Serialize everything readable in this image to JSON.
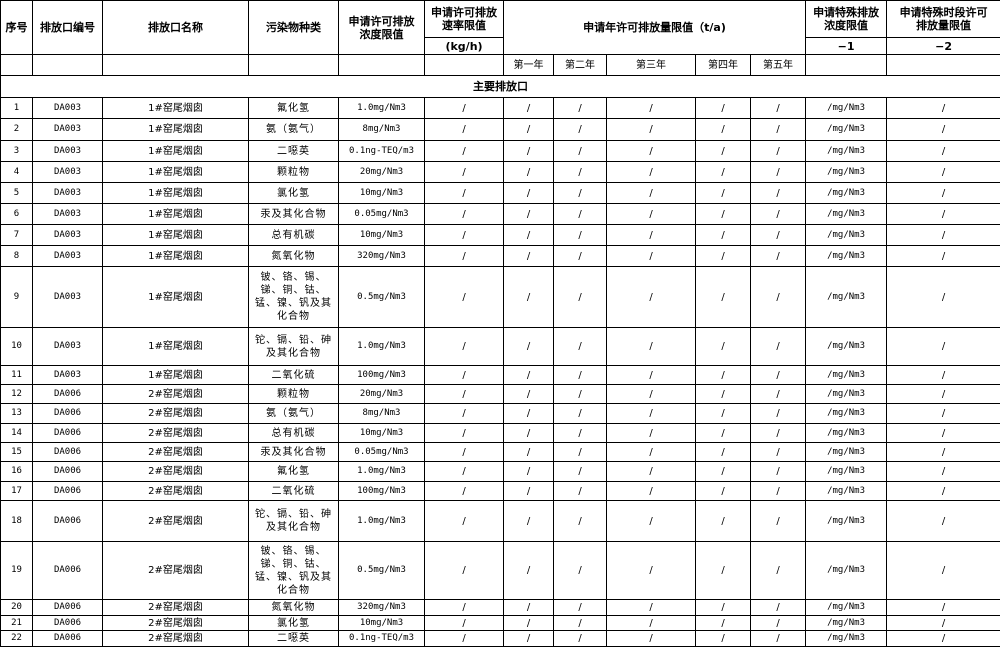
{
  "header": {
    "seq": "序号",
    "outlet_code": "排放口编号",
    "outlet_name": "排放口名称",
    "pollutant": "污染物种类",
    "conc_limit": "申请许可排放浓度限值",
    "rate_limit": "申请许可排放速率限值",
    "rate_unit": "(kg/h)",
    "annual_limit": "申请年许可排放量限值（t/a)",
    "years": [
      "第一年",
      "第二年",
      "第三年",
      "第四年",
      "第五年"
    ],
    "special_conc": "申请特殊排放浓度限值",
    "special_conc_note": "−1",
    "special_period": "申请特殊时段许可排放量限值",
    "special_period_note": "−2"
  },
  "section_title": "主要排放口",
  "rows": [
    [
      "1",
      "DA003",
      "1#窑尾烟囱",
      "氟化氢",
      "1.0mg/Nm3",
      "/",
      "/",
      "/",
      "/",
      "/",
      "/",
      "/mg/Nm3",
      "/"
    ],
    [
      "2",
      "DA003",
      "1#窑尾烟囱",
      "氨（氨气）",
      "8mg/Nm3",
      "/",
      "/",
      "/",
      "/",
      "/",
      "/",
      "/mg/Nm3",
      "/"
    ],
    [
      "3",
      "DA003",
      "1#窑尾烟囱",
      "二噁英",
      "0.1ng-TEQ/m3",
      "/",
      "/",
      "/",
      "/",
      "/",
      "/",
      "/mg/Nm3",
      "/"
    ],
    [
      "4",
      "DA003",
      "1#窑尾烟囱",
      "颗粒物",
      "20mg/Nm3",
      "/",
      "/",
      "/",
      "/",
      "/",
      "/",
      "/mg/Nm3",
      "/"
    ],
    [
      "5",
      "DA003",
      "1#窑尾烟囱",
      "氯化氢",
      "10mg/Nm3",
      "/",
      "/",
      "/",
      "/",
      "/",
      "/",
      "/mg/Nm3",
      "/"
    ],
    [
      "6",
      "DA003",
      "1#窑尾烟囱",
      "汞及其化合物",
      "0.05mg/Nm3",
      "/",
      "/",
      "/",
      "/",
      "/",
      "/",
      "/mg/Nm3",
      "/"
    ],
    [
      "7",
      "DA003",
      "1#窑尾烟囱",
      "总有机碳",
      "10mg/Nm3",
      "/",
      "/",
      "/",
      "/",
      "/",
      "/",
      "/mg/Nm3",
      "/"
    ],
    [
      "8",
      "DA003",
      "1#窑尾烟囱",
      "氮氧化物",
      "320mg/Nm3",
      "/",
      "/",
      "/",
      "/",
      "/",
      "/",
      "/mg/Nm3",
      "/"
    ],
    [
      "9",
      "DA003",
      "1#窑尾烟囱",
      "铍、铬、锡、锑、铜、钴、锰、镍、钒及其化合物",
      "0.5mg/Nm3",
      "/",
      "/",
      "/",
      "/",
      "/",
      "/",
      "/mg/Nm3",
      "/"
    ],
    [
      "10",
      "DA003",
      "1#窑尾烟囱",
      "铊、镉、铅、砷及其化合物",
      "1.0mg/Nm3",
      "/",
      "/",
      "/",
      "/",
      "/",
      "/",
      "/mg/Nm3",
      "/"
    ],
    [
      "11",
      "DA003",
      "1#窑尾烟囱",
      "二氧化硫",
      "100mg/Nm3",
      "/",
      "/",
      "/",
      "/",
      "/",
      "/",
      "/mg/Nm3",
      "/"
    ],
    [
      "12",
      "DA006",
      "2#窑尾烟囱",
      "颗粒物",
      "20mg/Nm3",
      "/",
      "/",
      "/",
      "/",
      "/",
      "/",
      "/mg/Nm3",
      "/"
    ],
    [
      "13",
      "DA006",
      "2#窑尾烟囱",
      "氨（氨气）",
      "8mg/Nm3",
      "/",
      "/",
      "/",
      "/",
      "/",
      "/",
      "/mg/Nm3",
      "/"
    ],
    [
      "14",
      "DA006",
      "2#窑尾烟囱",
      "总有机碳",
      "10mg/Nm3",
      "/",
      "/",
      "/",
      "/",
      "/",
      "/",
      "/mg/Nm3",
      "/"
    ],
    [
      "15",
      "DA006",
      "2#窑尾烟囱",
      "汞及其化合物",
      "0.05mg/Nm3",
      "/",
      "/",
      "/",
      "/",
      "/",
      "/",
      "/mg/Nm3",
      "/"
    ],
    [
      "16",
      "DA006",
      "2#窑尾烟囱",
      "氟化氢",
      "1.0mg/Nm3",
      "/",
      "/",
      "/",
      "/",
      "/",
      "/",
      "/mg/Nm3",
      "/"
    ],
    [
      "17",
      "DA006",
      "2#窑尾烟囱",
      "二氧化硫",
      "100mg/Nm3",
      "/",
      "/",
      "/",
      "/",
      "/",
      "/",
      "/mg/Nm3",
      "/"
    ],
    [
      "18",
      "DA006",
      "2#窑尾烟囱",
      "铊、镉、铅、砷及其化合物",
      "1.0mg/Nm3",
      "/",
      "/",
      "/",
      "/",
      "/",
      "/",
      "/mg/Nm3",
      "/"
    ],
    [
      "19",
      "DA006",
      "2#窑尾烟囱",
      "铍、铬、锡、锑、铜、钴、锰、镍、钒及其化合物",
      "0.5mg/Nm3",
      "/",
      "/",
      "/",
      "/",
      "/",
      "/",
      "/mg/Nm3",
      "/"
    ],
    [
      "20",
      "DA006",
      "2#窑尾烟囱",
      "氮氧化物",
      "320mg/Nm3",
      "/",
      "/",
      "/",
      "/",
      "/",
      "/",
      "/mg/Nm3",
      "/"
    ],
    [
      "21",
      "DA006",
      "2#窑尾烟囱",
      "氯化氢",
      "10mg/Nm3",
      "/",
      "/",
      "/",
      "/",
      "/",
      "/",
      "/mg/Nm3",
      "/"
    ],
    [
      "22",
      "DA006",
      "2#窑尾烟囱",
      "二噁英",
      "0.1ng-TEQ/m3",
      "/",
      "/",
      "/",
      "/",
      "/",
      "/",
      "/mg/Nm3",
      "/"
    ]
  ]
}
